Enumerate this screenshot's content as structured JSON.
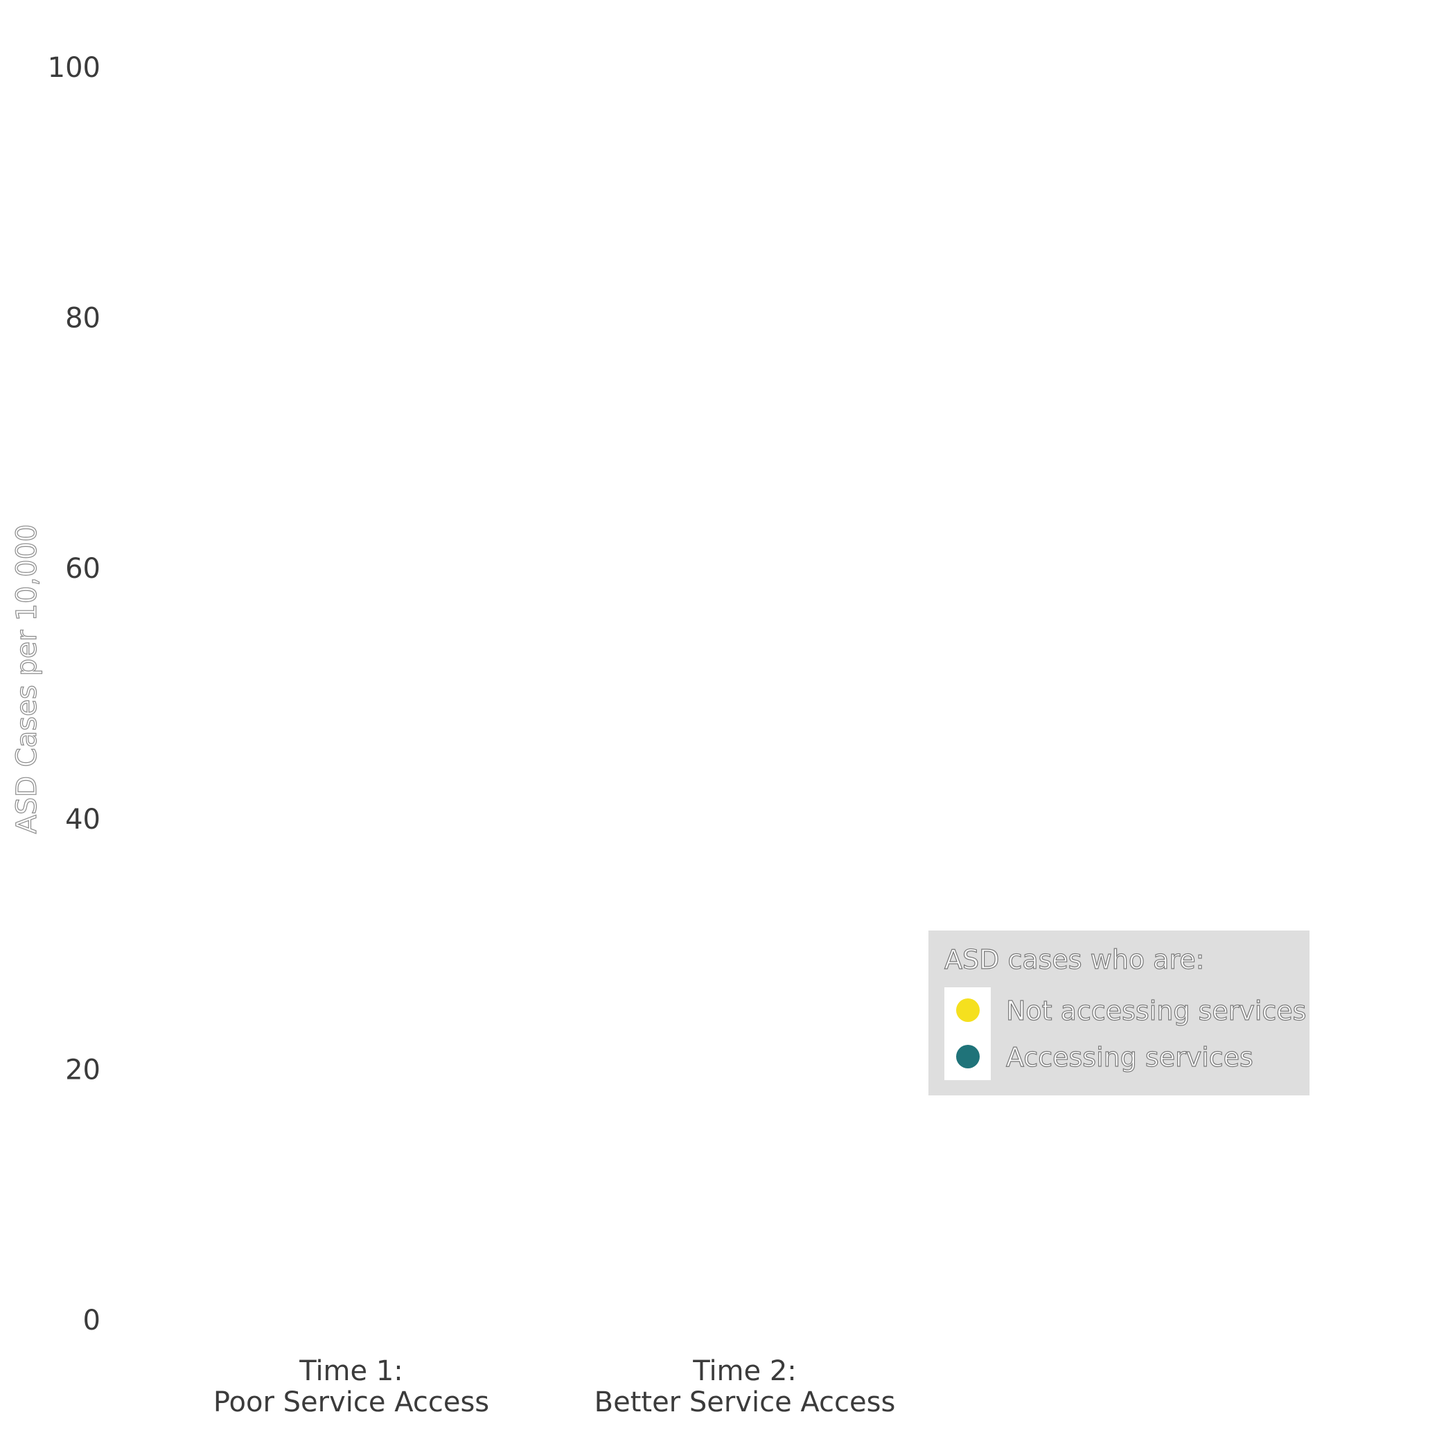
{
  "chart_data": {
    "type": "bar",
    "stacked": true,
    "categories": [
      "Time 1:\nPoor Service Access",
      "Time 2:\nBetter Service Access"
    ],
    "series": [
      {
        "name": "Not accessing services",
        "color": "#f5e01e",
        "values": [
          null,
          null
        ]
      },
      {
        "name": "Accessing services",
        "color": "#1f7379",
        "values": [
          null,
          null
        ]
      }
    ],
    "ylabel": "ASD Cases per 10,000",
    "xlabel": "",
    "ylim": [
      0,
      100
    ],
    "yticks": [
      "0",
      "20",
      "40",
      "60",
      "80",
      "100"
    ],
    "grid": false,
    "legend": {
      "title": "ASD cases who are:",
      "placement": "right"
    }
  }
}
